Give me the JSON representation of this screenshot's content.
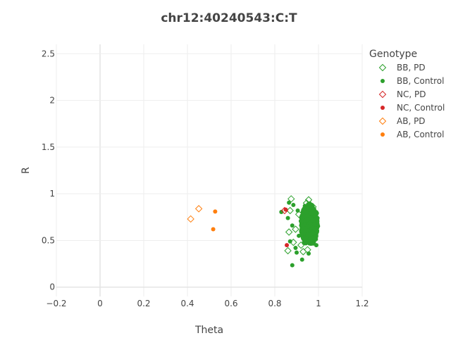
{
  "chart_data": {
    "type": "scatter",
    "title": "chr12:40240543:C:T",
    "xlabel": "Theta",
    "ylabel": "R",
    "xlim": [
      -0.2,
      1.2
    ],
    "ylim": [
      -0.1,
      2.6
    ],
    "x_ticks": [
      -0.2,
      0,
      0.2,
      0.4,
      0.6,
      0.8,
      1,
      1.2
    ],
    "x_tick_labels": [
      "−0.2",
      "0",
      "0.2",
      "0.4",
      "0.6",
      "0.8",
      "1",
      "1.2"
    ],
    "y_ticks": [
      0,
      0.5,
      1,
      1.5,
      2,
      2.5
    ],
    "y_tick_labels": [
      "0",
      "0.5",
      "1",
      "1.5",
      "2",
      "2.5"
    ],
    "grid": true,
    "legend": {
      "title": "Genotype",
      "placement": "right"
    },
    "series": [
      {
        "name": "BB, PD",
        "color": "#2ca02c",
        "marker": "diamond-open",
        "points": [
          [
            0.875,
            0.945
          ],
          [
            0.955,
            0.935
          ],
          [
            0.865,
            0.59
          ],
          [
            0.87,
            0.82
          ],
          [
            0.91,
            0.78
          ],
          [
            0.92,
            0.45
          ],
          [
            0.94,
            0.52
          ],
          [
            0.95,
            0.4
          ],
          [
            0.93,
            0.38
          ],
          [
            0.86,
            0.39
          ],
          [
            0.895,
            0.62
          ],
          [
            0.975,
            0.86
          ],
          [
            0.99,
            0.74
          ],
          [
            0.945,
            0.9
          ],
          [
            0.96,
            0.5
          ],
          [
            0.885,
            0.48
          ]
        ]
      },
      {
        "name": "BB, Control",
        "color": "#2ca02c",
        "marker": "circle",
        "points": [
          [
            0.83,
            0.805
          ],
          [
            0.865,
            0.905
          ],
          [
            0.86,
            0.74
          ],
          [
            0.88,
            0.235
          ],
          [
            0.925,
            0.295
          ],
          [
            0.895,
            0.42
          ],
          [
            0.9,
            0.37
          ],
          [
            0.87,
            0.49
          ],
          [
            0.885,
            0.88
          ],
          [
            0.91,
            0.55
          ],
          [
            0.905,
            0.82
          ],
          [
            0.97,
            0.88
          ],
          [
            0.99,
            0.45
          ],
          [
            0.955,
            0.36
          ],
          [
            0.88,
            0.66
          ],
          [
            0.995,
            0.7
          ]
        ]
      },
      {
        "name": "NC, PD",
        "color": "#d62728",
        "marker": "diamond-open",
        "points": [
          [
            0.845,
            0.82
          ]
        ]
      },
      {
        "name": "NC, Control",
        "color": "#d62728",
        "marker": "circle",
        "points": [
          [
            0.855,
            0.45
          ],
          [
            0.85,
            0.83
          ]
        ]
      },
      {
        "name": "AB, PD",
        "color": "#ff7f0e",
        "marker": "diamond-open",
        "points": [
          [
            0.415,
            0.73
          ],
          [
            0.452,
            0.84
          ]
        ]
      },
      {
        "name": "AB, Control",
        "color": "#ff7f0e",
        "marker": "circle",
        "points": [
          [
            0.527,
            0.81
          ],
          [
            0.518,
            0.62
          ]
        ]
      }
    ],
    "cluster": {
      "series": "BB, Control",
      "center_x": 0.958,
      "center_y": 0.67,
      "spread_x": 0.02,
      "spread_y": 0.11,
      "count": 900
    }
  }
}
